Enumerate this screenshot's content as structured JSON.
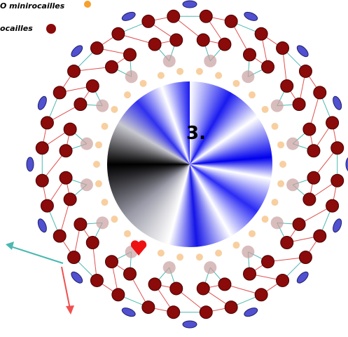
{
  "legend": [
    {
      "label": "O minirocailles"
    },
    {
      "label": "ocailles"
    }
  ],
  "step": "3."
}
